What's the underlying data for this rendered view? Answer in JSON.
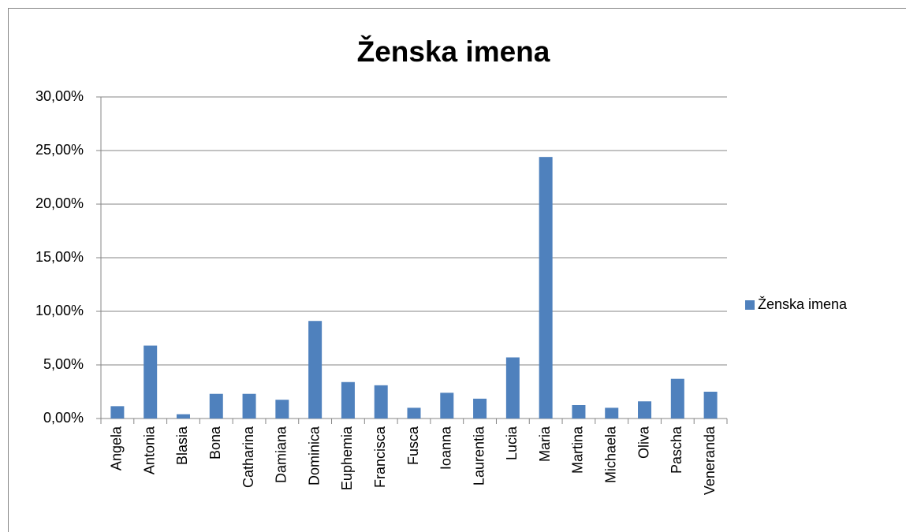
{
  "chart_data": {
    "type": "bar",
    "title": "Ženska imena",
    "categories": [
      "Angela",
      "Antonia",
      "Blasia",
      "Bona",
      "Catharina",
      "Damiana",
      "Dominica",
      "Euphemia",
      "Francisca",
      "Fusca",
      "Ioanna",
      "Laurentia",
      "Lucia",
      "Maria",
      "Martina",
      "Michaela",
      "Oliva",
      "Pascha",
      "Veneranda"
    ],
    "series": [
      {
        "name": "Ženska imena",
        "color": "#4f81bd",
        "values": [
          1.15,
          6.8,
          0.4,
          2.3,
          2.3,
          1.75,
          9.1,
          3.4,
          3.1,
          1.0,
          2.4,
          1.85,
          5.7,
          24.4,
          1.25,
          1.0,
          1.6,
          3.7,
          2.5
        ]
      }
    ],
    "ylim": [
      0,
      30
    ],
    "yticks": [
      {
        "value": 0,
        "label": "0,00%"
      },
      {
        "value": 5,
        "label": "5,00%"
      },
      {
        "value": 10,
        "label": "10,00%"
      },
      {
        "value": 15,
        "label": "15,00%"
      },
      {
        "value": 20,
        "label": "20,00%"
      },
      {
        "value": 25,
        "label": "25,00%"
      },
      {
        "value": 30,
        "label": "30,00%"
      }
    ],
    "grid": true,
    "legend": "right"
  }
}
